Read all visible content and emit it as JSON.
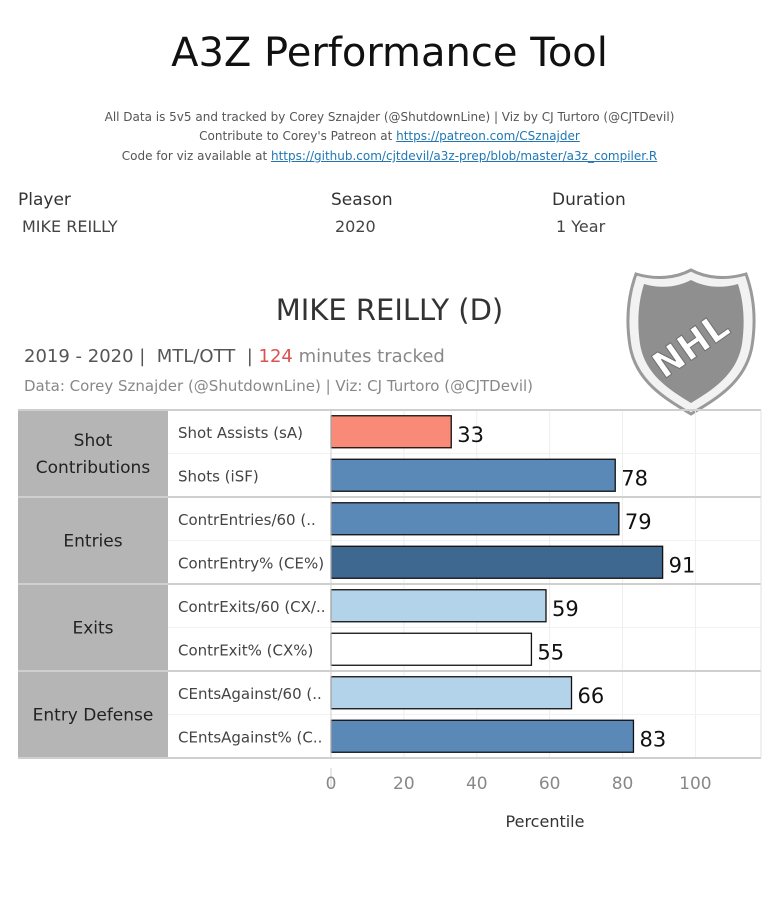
{
  "header": {
    "title": "A3Z Performance Tool",
    "credit_line1": "All Data is 5v5 and tracked by Corey Sznajder (@ShutdownLine) | Viz by CJ Turtoro (@CJTDevil)",
    "credit_line2_prefix": "Contribute to Corey's Patreon at ",
    "credit_line2_link": "https://patreon.com/CSznajder",
    "credit_line3_prefix": "Code for viz available at ",
    "credit_line3_link": "https://github.com/cjtdevil/a3z-prep/blob/master/a3z_compiler.R"
  },
  "filters": {
    "player_label": "Player",
    "player_value": "MIKE REILLY",
    "season_label": "Season",
    "season_value": "2020",
    "duration_label": "Duration",
    "duration_value": "1 Year"
  },
  "player": {
    "heading": "MIKE REILLY (D)",
    "season_range": "2019 - 2020 |",
    "team": "MTL/OTT",
    "minutes": "124",
    "minutes_suffix": "minutes tracked",
    "data_credit": "Data: Corey Sznajder (@ShutdownLine) | Viz: CJ Turtoro (@CJTDevil)"
  },
  "logo": {
    "text": "NHL"
  },
  "colors": {
    "salmon": "#f88a77",
    "blue_mid": "#5b89b7",
    "blue_dark": "#3e6890",
    "blue_light": "#b3d3ea",
    "white": "#ffffff",
    "group_bg": "#b5b5b5"
  },
  "chart_data": {
    "type": "bar",
    "orientation": "horizontal",
    "xlabel": "Percentile",
    "xlim": [
      0,
      118
    ],
    "xticks": [
      0,
      20,
      40,
      60,
      80,
      100
    ],
    "groups": [
      {
        "name": "Shot\nContributions",
        "metrics": [
          {
            "label": "Shot Assists (sA)",
            "value": 33,
            "color": "#f88a77"
          },
          {
            "label": "Shots (iSF)",
            "value": 78,
            "color": "#5b89b7"
          }
        ]
      },
      {
        "name": "Entries",
        "metrics": [
          {
            "label": "ContrEntries/60 (..",
            "value": 79,
            "color": "#5b89b7"
          },
          {
            "label": "ContrEntry% (CE%)",
            "value": 91,
            "color": "#3e6890"
          }
        ]
      },
      {
        "name": "Exits",
        "metrics": [
          {
            "label": "ContrExits/60 (CX/..",
            "value": 59,
            "color": "#b3d3ea"
          },
          {
            "label": "ContrExit% (CX%)",
            "value": 55,
            "color": "#ffffff"
          }
        ]
      },
      {
        "name": "Entry Defense",
        "metrics": [
          {
            "label": "CEntsAgainst/60 (..",
            "value": 66,
            "color": "#b3d3ea"
          },
          {
            "label": "CEntsAgainst% (C..",
            "value": 83,
            "color": "#5b89b7"
          }
        ]
      }
    ]
  }
}
